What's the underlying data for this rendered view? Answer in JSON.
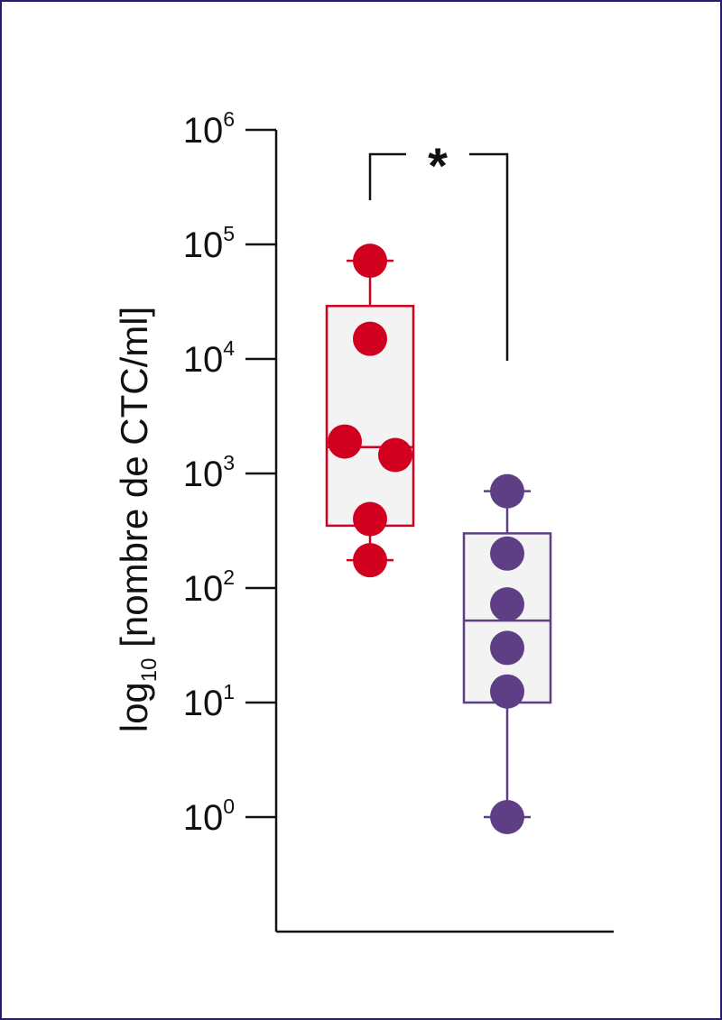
{
  "chart_data": {
    "type": "box",
    "y_scale": "log10",
    "ylim": [
      0.1,
      1000000
    ],
    "ylabel": {
      "prefix": "log",
      "subscript": "10",
      "suffix": " [nombre de CTC/ml]"
    },
    "y_ticks": [
      {
        "value": 1,
        "base": "10",
        "exp": "0"
      },
      {
        "value": 10,
        "base": "10",
        "exp": "1"
      },
      {
        "value": 100,
        "base": "10",
        "exp": "2"
      },
      {
        "value": 1000,
        "base": "10",
        "exp": "3"
      },
      {
        "value": 10000,
        "base": "10",
        "exp": "4"
      },
      {
        "value": 100000,
        "base": "10",
        "exp": "5"
      },
      {
        "value": 1000000,
        "base": "10",
        "exp": "6"
      }
    ],
    "series": [
      {
        "color": "#d2001f",
        "box": {
          "min": 175,
          "q1": 350,
          "median": 1700,
          "q3": 29000,
          "max": 72000
        },
        "points": [
          72000,
          15000,
          1900,
          1450,
          400,
          175
        ]
      },
      {
        "color": "#5e3f86",
        "box": {
          "min": 1,
          "q1": 10,
          "median": 52,
          "q3": 300,
          "max": 700
        },
        "points": [
          700,
          200,
          72,
          30,
          12.5,
          1
        ]
      }
    ],
    "annotations": [
      {
        "type": "significance",
        "text": "*",
        "between": [
          0,
          1
        ]
      }
    ],
    "grid": false,
    "legend": "none"
  }
}
